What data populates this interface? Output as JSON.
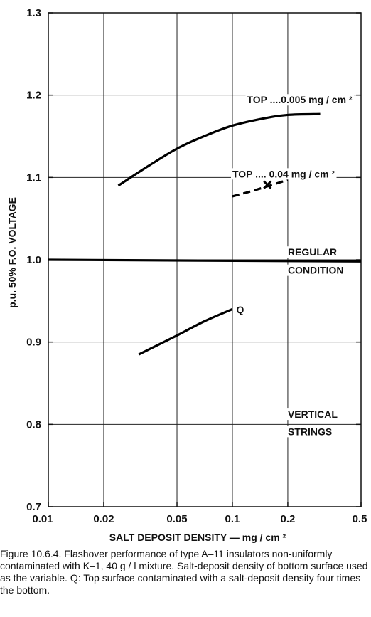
{
  "chart_data": {
    "type": "line",
    "x_scale": "log",
    "xlim": [
      0.01,
      0.5
    ],
    "ylim": [
      0.7,
      1.3
    ],
    "x_ticks": [
      0.01,
      0.02,
      0.05,
      0.1,
      0.2,
      0.5
    ],
    "x_tick_labels": [
      "0.01",
      "0.02",
      "0.05",
      "0.1",
      "0.2",
      "0.5"
    ],
    "y_ticks": [
      0.7,
      0.8,
      0.9,
      1.0,
      1.1,
      1.2,
      1.3
    ],
    "y_tick_labels": [
      "0.7",
      "0.8",
      "0.9",
      "1.0",
      "1.1",
      "1.2",
      "1.3"
    ],
    "xlabel": "SALT DEPOSIT DENSITY — mg / cm ²",
    "ylabel": "p.u. 50% F.O. VOLTAGE",
    "grid": true,
    "series": [
      {
        "name": "TOP ....0.005  mg / cm ²",
        "style": "solid",
        "points": [
          [
            0.024,
            1.09
          ],
          [
            0.035,
            1.114
          ],
          [
            0.05,
            1.135
          ],
          [
            0.07,
            1.15
          ],
          [
            0.1,
            1.163
          ],
          [
            0.15,
            1.172
          ],
          [
            0.2,
            1.176
          ],
          [
            0.3,
            1.177
          ]
        ]
      },
      {
        "name": "TOP .... 0.04  mg / cm ²",
        "style": "dashed",
        "points": [
          [
            0.1,
            1.077
          ],
          [
            0.13,
            1.084
          ],
          [
            0.2,
            1.097
          ]
        ],
        "marker": [
          0.155,
          1.091
        ]
      },
      {
        "name": "Q",
        "style": "solid",
        "points": [
          [
            0.031,
            0.885
          ],
          [
            0.05,
            0.908
          ],
          [
            0.07,
            0.925
          ],
          [
            0.1,
            0.94
          ]
        ]
      },
      {
        "name": "REGULAR CONDITION",
        "style": "solid",
        "points": [
          [
            0.01,
            1.0
          ],
          [
            0.5,
            0.998
          ]
        ]
      }
    ],
    "annotations": [
      {
        "text": "TOP ....0.005  mg / cm ²",
        "x": 0.12,
        "y": 1.19
      },
      {
        "text": "TOP .... 0.04  mg / cm ²",
        "x": 0.1,
        "y": 1.1
      },
      {
        "text": "REGULAR",
        "x": 0.2,
        "y": 1.005
      },
      {
        "text": "CONDITION",
        "x": 0.2,
        "y": 0.983
      },
      {
        "text": "Q",
        "x": 0.105,
        "y": 0.935
      },
      {
        "text": "VERTICAL",
        "x": 0.2,
        "y": 0.808
      },
      {
        "text": "STRINGS",
        "x": 0.2,
        "y": 0.787
      }
    ]
  },
  "caption": "Figure 10.6.4.   Flashover performance of type A–11 insulators non-uniformly contaminated with K–1, 40 g / l mixture. Salt-deposit density of bottom surface used as the variable. Q: Top surface contaminated with a salt-deposit density four times the bottom."
}
